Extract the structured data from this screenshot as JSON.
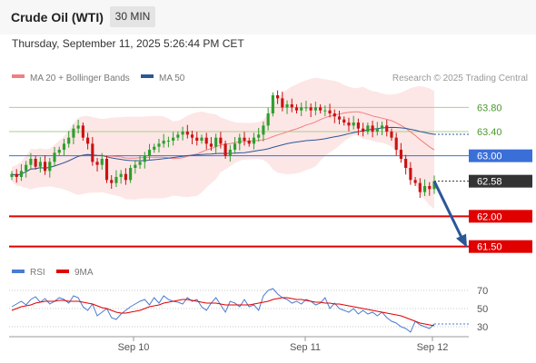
{
  "header": {
    "title": "Crude Oil (WTI)",
    "timeframe": "30 MIN",
    "datetime": "Thursday, September 11, 2025 5:26:44 PM CET"
  },
  "chart_data": {
    "type": "candlestick",
    "legend": {
      "ma20": "MA 20 + Bollinger Bands",
      "ma50": "MA 50",
      "attribution": "Research © 2025 Trading Central",
      "rsi": "RSI",
      "rsi_ma": "9MA"
    },
    "colors": {
      "up": "#2e9e2e",
      "down": "#cc1111",
      "ma20": "#f08080",
      "ma50": "#2b5797",
      "bands": "#fde0e0",
      "resistance_line": "#a8d08d",
      "pivot_line": "#3a6fd8",
      "support_line": "#e00000",
      "current_price": "#333333",
      "rsi": "#4a7bd0",
      "rsi_ma": "#e00000",
      "projection_arrow": "#2b5797"
    },
    "price_axis": {
      "min": 61.3,
      "max": 64.3
    },
    "levels": [
      {
        "value": 63.8,
        "label": "63.80",
        "kind": "resistance"
      },
      {
        "value": 63.4,
        "label": "63.40",
        "kind": "resistance"
      },
      {
        "value": 63.0,
        "label": "63.00",
        "kind": "pivot"
      },
      {
        "value": 62.58,
        "label": "62.58",
        "kind": "current"
      },
      {
        "value": 62.0,
        "label": "62.00",
        "kind": "support"
      },
      {
        "value": 61.5,
        "label": "61.50",
        "kind": "support"
      }
    ],
    "projection": {
      "from": 62.58,
      "to": 61.5
    },
    "x_labels": [
      "Sep 10",
      "Sep 11",
      "Sep 12"
    ],
    "candles_close": [
      62.7,
      62.65,
      62.75,
      62.85,
      62.95,
      62.82,
      62.9,
      62.75,
      62.9,
      63.05,
      63.1,
      63.2,
      63.3,
      63.45,
      63.5,
      63.3,
      63.2,
      62.9,
      62.85,
      62.95,
      62.6,
      62.55,
      62.65,
      62.7,
      62.6,
      62.8,
      62.85,
      62.9,
      63.0,
      63.1,
      63.15,
      63.2,
      63.25,
      63.25,
      63.3,
      63.35,
      63.4,
      63.35,
      63.3,
      63.25,
      63.3,
      63.2,
      63.15,
      63.3,
      63.2,
      63.0,
      63.1,
      63.2,
      63.3,
      63.25,
      63.2,
      63.3,
      63.35,
      63.5,
      63.7,
      64.0,
      63.95,
      63.8,
      63.85,
      63.8,
      63.75,
      63.8,
      63.8,
      63.75,
      63.8,
      63.75,
      63.75,
      63.7,
      63.65,
      63.6,
      63.55,
      63.5,
      63.55,
      63.45,
      63.4,
      63.5,
      63.4,
      63.45,
      63.5,
      63.4,
      63.3,
      63.1,
      62.95,
      62.8,
      62.6,
      62.55,
      62.4,
      62.5,
      62.45,
      62.58
    ],
    "rsi_axis": {
      "min": 20,
      "max": 80,
      "ticks": [
        70,
        50,
        30
      ]
    },
    "rsi": [
      52,
      55,
      58,
      54,
      60,
      63,
      57,
      61,
      55,
      58,
      62,
      60,
      56,
      64,
      62,
      52,
      48,
      55,
      42,
      46,
      50,
      40,
      38,
      44,
      48,
      52,
      55,
      58,
      60,
      54,
      62,
      56,
      64,
      60,
      58,
      57,
      55,
      62,
      58,
      60,
      52,
      48,
      56,
      62,
      54,
      46,
      58,
      56,
      52,
      60,
      52,
      54,
      48,
      64,
      70,
      72,
      66,
      62,
      60,
      56,
      58,
      55,
      60,
      58,
      54,
      56,
      62,
      50,
      56,
      50,
      48,
      46,
      50,
      44,
      48,
      44,
      46,
      42,
      46,
      40,
      36,
      34,
      30,
      28,
      24,
      36,
      32,
      30,
      28,
      33
    ],
    "rsi_ma": [
      48,
      50,
      52,
      53,
      54,
      56,
      57,
      58,
      58,
      58,
      59,
      59,
      58,
      58,
      58,
      57,
      56,
      55,
      53,
      51,
      50,
      48,
      46,
      45,
      45,
      46,
      47,
      48,
      50,
      52,
      53,
      54,
      56,
      57,
      58,
      59,
      60,
      60,
      59,
      58,
      57,
      56,
      56,
      56,
      55,
      54,
      54,
      54,
      54,
      54,
      54,
      55,
      56,
      57,
      58,
      60,
      61,
      62,
      62,
      61,
      60,
      60,
      59,
      58,
      57,
      57,
      56,
      56,
      55,
      55,
      54,
      53,
      52,
      51,
      50,
      49,
      48,
      47,
      46,
      45,
      44,
      43,
      42,
      40,
      38,
      36,
      34,
      33,
      32,
      31
    ]
  }
}
